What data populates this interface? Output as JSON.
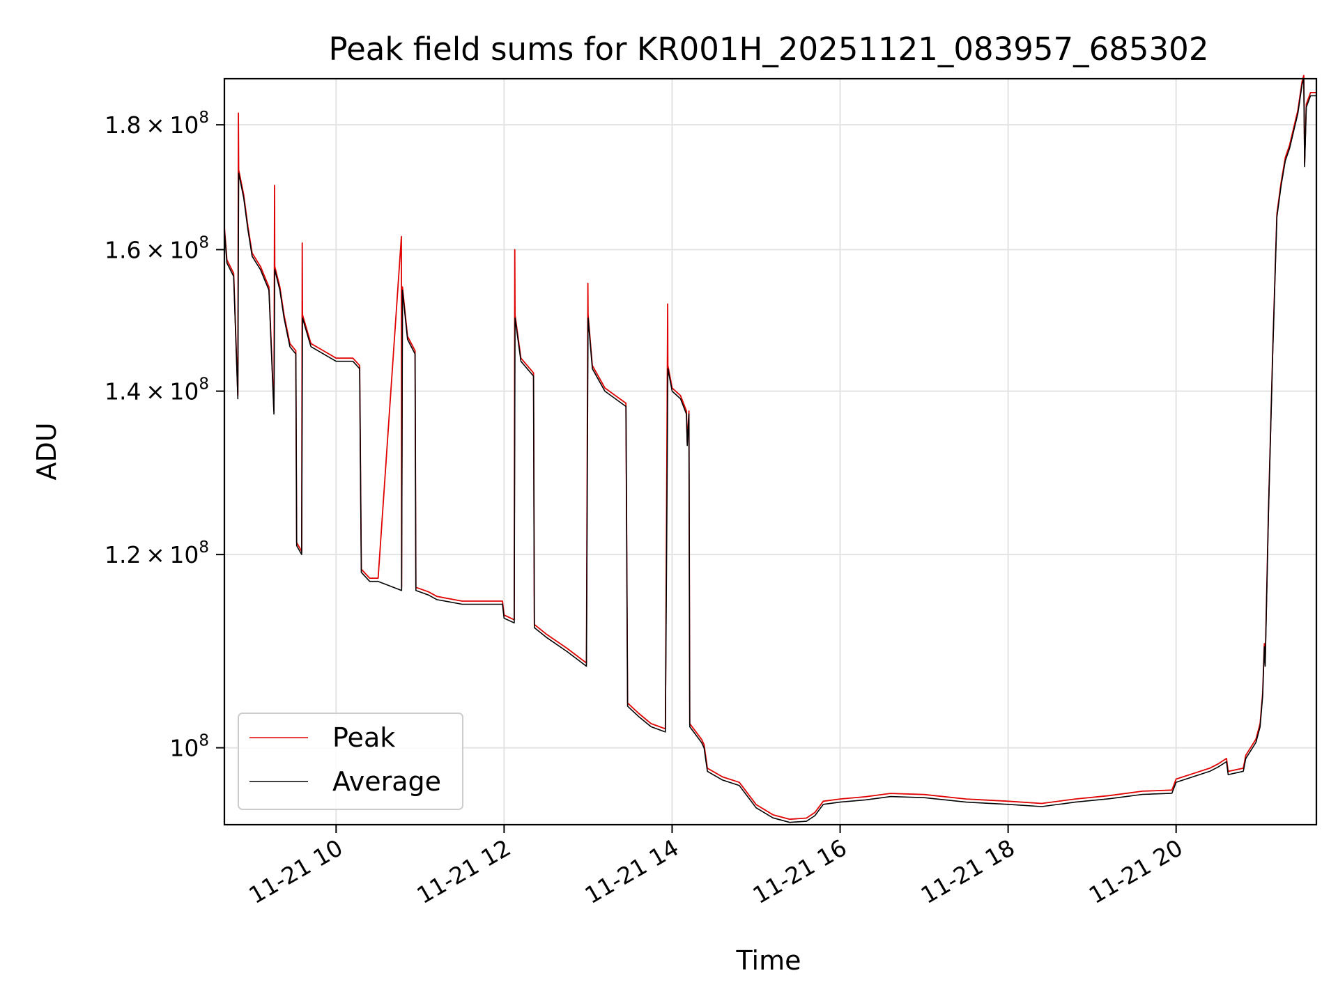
{
  "chart_data": {
    "type": "line",
    "title": "Peak field sums for KR001H_20251121_083957_685302",
    "xlabel": "Time",
    "ylabel": "ADU",
    "x_unit": "hours of day 2025-11-21",
    "x_range": [
      8.67,
      21.67
    ],
    "ylim": [
      93000000,
      188000000
    ],
    "y_scale": "log",
    "grid": true,
    "legend_position": "lower-left",
    "x_ticks": [
      {
        "value": 10,
        "label": "11-21 10"
      },
      {
        "value": 12,
        "label": "11-21 12"
      },
      {
        "value": 14,
        "label": "11-21 14"
      },
      {
        "value": 16,
        "label": "11-21 16"
      },
      {
        "value": 18,
        "label": "11-21 18"
      },
      {
        "value": 20,
        "label": "11-21 20"
      }
    ],
    "y_ticks": [
      {
        "value": 180000000,
        "mantissa": "1.8",
        "exp": "8"
      },
      {
        "value": 160000000,
        "mantissa": "1.6",
        "exp": "8"
      },
      {
        "value": 140000000,
        "mantissa": "1.4",
        "exp": "8"
      },
      {
        "value": 120000000,
        "mantissa": "1.2",
        "exp": "8"
      },
      {
        "value": 100000000,
        "mantissa": "",
        "exp": "8"
      }
    ],
    "series": [
      {
        "name": "Peak",
        "color": "#e00000",
        "spikes": [
          [
            8.84,
            182000000
          ],
          [
            9.27,
            170000000
          ],
          [
            9.6,
            161000000
          ],
          [
            10.78,
            162000000
          ],
          [
            12.13,
            160000000
          ],
          [
            13.0,
            155000000
          ],
          [
            13.95,
            152000000
          ]
        ]
      },
      {
        "name": "Average",
        "color": "#000000"
      }
    ],
    "average_points": [
      [
        8.67,
        163000000
      ],
      [
        8.7,
        158000000
      ],
      [
        8.78,
        156000000
      ],
      [
        8.83,
        139000000
      ],
      [
        8.84,
        172000000
      ],
      [
        8.9,
        168000000
      ],
      [
        8.95,
        163000000
      ],
      [
        9.0,
        159000000
      ],
      [
        9.1,
        157000000
      ],
      [
        9.2,
        154000000
      ],
      [
        9.26,
        137000000
      ],
      [
        9.27,
        157000000
      ],
      [
        9.33,
        154000000
      ],
      [
        9.38,
        150000000
      ],
      [
        9.45,
        146000000
      ],
      [
        9.52,
        145000000
      ],
      [
        9.53,
        121000000
      ],
      [
        9.59,
        120000000
      ],
      [
        9.6,
        150000000
      ],
      [
        9.7,
        146000000
      ],
      [
        9.85,
        145000000
      ],
      [
        10.0,
        144000000
      ],
      [
        10.2,
        144000000
      ],
      [
        10.28,
        143000000
      ],
      [
        10.3,
        118000000
      ],
      [
        10.4,
        117000000
      ],
      [
        10.5,
        117000000
      ],
      [
        10.78,
        116000000
      ],
      [
        10.79,
        154000000
      ],
      [
        10.85,
        147000000
      ],
      [
        10.94,
        145000000
      ],
      [
        10.95,
        116000000
      ],
      [
        11.1,
        115500000
      ],
      [
        11.2,
        115000000
      ],
      [
        11.5,
        114500000
      ],
      [
        11.98,
        114500000
      ],
      [
        12.0,
        113000000
      ],
      [
        12.12,
        112500000
      ],
      [
        12.13,
        150000000
      ],
      [
        12.2,
        144000000
      ],
      [
        12.35,
        142000000
      ],
      [
        12.36,
        112000000
      ],
      [
        12.5,
        111000000
      ],
      [
        12.75,
        109500000
      ],
      [
        12.98,
        108000000
      ],
      [
        13.0,
        150000000
      ],
      [
        13.05,
        143000000
      ],
      [
        13.2,
        140000000
      ],
      [
        13.45,
        138000000
      ],
      [
        13.47,
        104000000
      ],
      [
        13.6,
        103000000
      ],
      [
        13.75,
        102000000
      ],
      [
        13.92,
        101500000
      ],
      [
        13.95,
        143000000
      ],
      [
        14.0,
        140000000
      ],
      [
        14.1,
        139000000
      ],
      [
        14.17,
        137000000
      ],
      [
        14.18,
        133000000
      ],
      [
        14.2,
        137000000
      ],
      [
        14.21,
        102000000
      ],
      [
        14.35,
        100500000
      ],
      [
        14.38,
        100000000
      ],
      [
        14.42,
        97800000
      ],
      [
        14.6,
        97000000
      ],
      [
        14.8,
        96500000
      ],
      [
        15.0,
        94500000
      ],
      [
        15.2,
        93600000
      ],
      [
        15.4,
        93200000
      ],
      [
        15.6,
        93300000
      ],
      [
        15.7,
        93800000
      ],
      [
        15.8,
        94800000
      ],
      [
        16.0,
        95000000
      ],
      [
        16.3,
        95200000
      ],
      [
        16.6,
        95500000
      ],
      [
        17.0,
        95400000
      ],
      [
        17.5,
        95000000
      ],
      [
        18.0,
        94800000
      ],
      [
        18.4,
        94600000
      ],
      [
        18.8,
        95000000
      ],
      [
        19.2,
        95300000
      ],
      [
        19.6,
        95700000
      ],
      [
        19.95,
        95800000
      ],
      [
        20.0,
        96800000
      ],
      [
        20.2,
        97300000
      ],
      [
        20.4,
        97800000
      ],
      [
        20.5,
        98200000
      ],
      [
        20.6,
        98700000
      ],
      [
        20.62,
        97500000
      ],
      [
        20.8,
        97800000
      ],
      [
        20.83,
        99000000
      ],
      [
        20.95,
        100500000
      ],
      [
        21.0,
        102000000
      ],
      [
        21.03,
        105000000
      ],
      [
        21.05,
        110000000
      ],
      [
        21.06,
        108000000
      ],
      [
        21.1,
        125000000
      ],
      [
        21.15,
        145000000
      ],
      [
        21.2,
        165000000
      ],
      [
        21.25,
        170000000
      ],
      [
        21.3,
        174000000
      ],
      [
        21.35,
        176000000
      ],
      [
        21.45,
        182000000
      ],
      [
        21.5,
        187000000
      ],
      [
        21.52,
        188000000
      ],
      [
        21.53,
        173000000
      ],
      [
        21.55,
        183000000
      ],
      [
        21.6,
        185000000
      ],
      [
        21.67,
        185000000
      ]
    ]
  }
}
